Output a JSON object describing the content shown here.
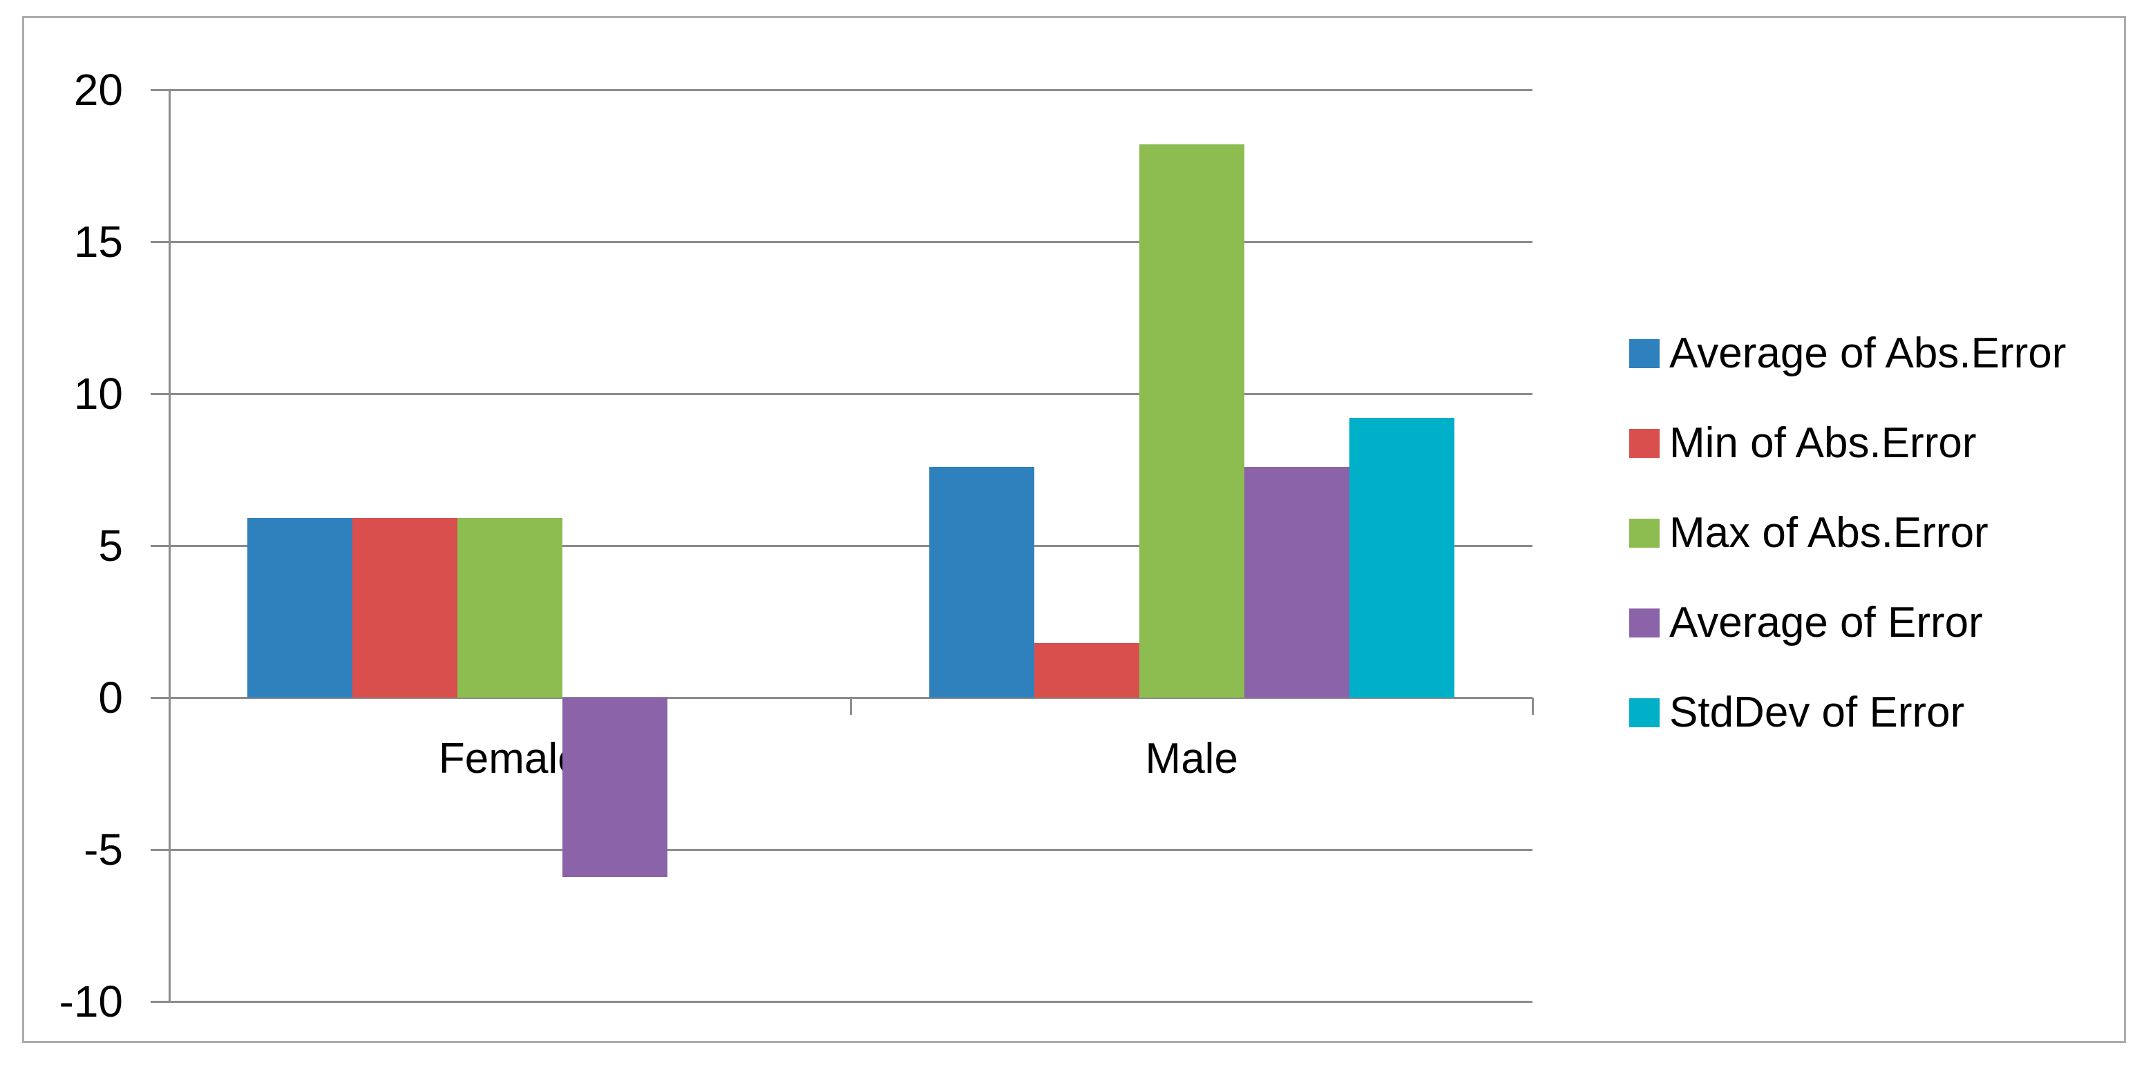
{
  "chart_data": {
    "type": "bar",
    "title": "",
    "categories": [
      "Female",
      "Male"
    ],
    "series": [
      {
        "name": "Average of Abs.Error",
        "color": "#2E81BD",
        "values": [
          5.9,
          7.6
        ]
      },
      {
        "name": "Min of Abs.Error",
        "color": "#D94F4D",
        "values": [
          5.9,
          1.8
        ]
      },
      {
        "name": "Max of Abs.Error",
        "color": "#8DBC50",
        "values": [
          5.9,
          18.2
        ]
      },
      {
        "name": "Average of Error",
        "color": "#8A63A8",
        "values": [
          -5.9,
          7.6
        ]
      },
      {
        "name": "StdDev of Error",
        "color": "#00AFC8",
        "values": [
          0,
          9.2
        ]
      }
    ],
    "y_axis": {
      "min": -10,
      "max": 20,
      "step": 5,
      "tick_labels": [
        "20",
        "15",
        "10",
        "5",
        "0",
        "-5",
        "-10"
      ]
    },
    "grid": true,
    "legend_position": "right",
    "xlabel": "",
    "ylabel": ""
  },
  "style_colors": {
    "gridline": "#8C8C8C",
    "frame_border": "#ACACAC",
    "text": "#000000",
    "background": "#FFFFFF"
  }
}
